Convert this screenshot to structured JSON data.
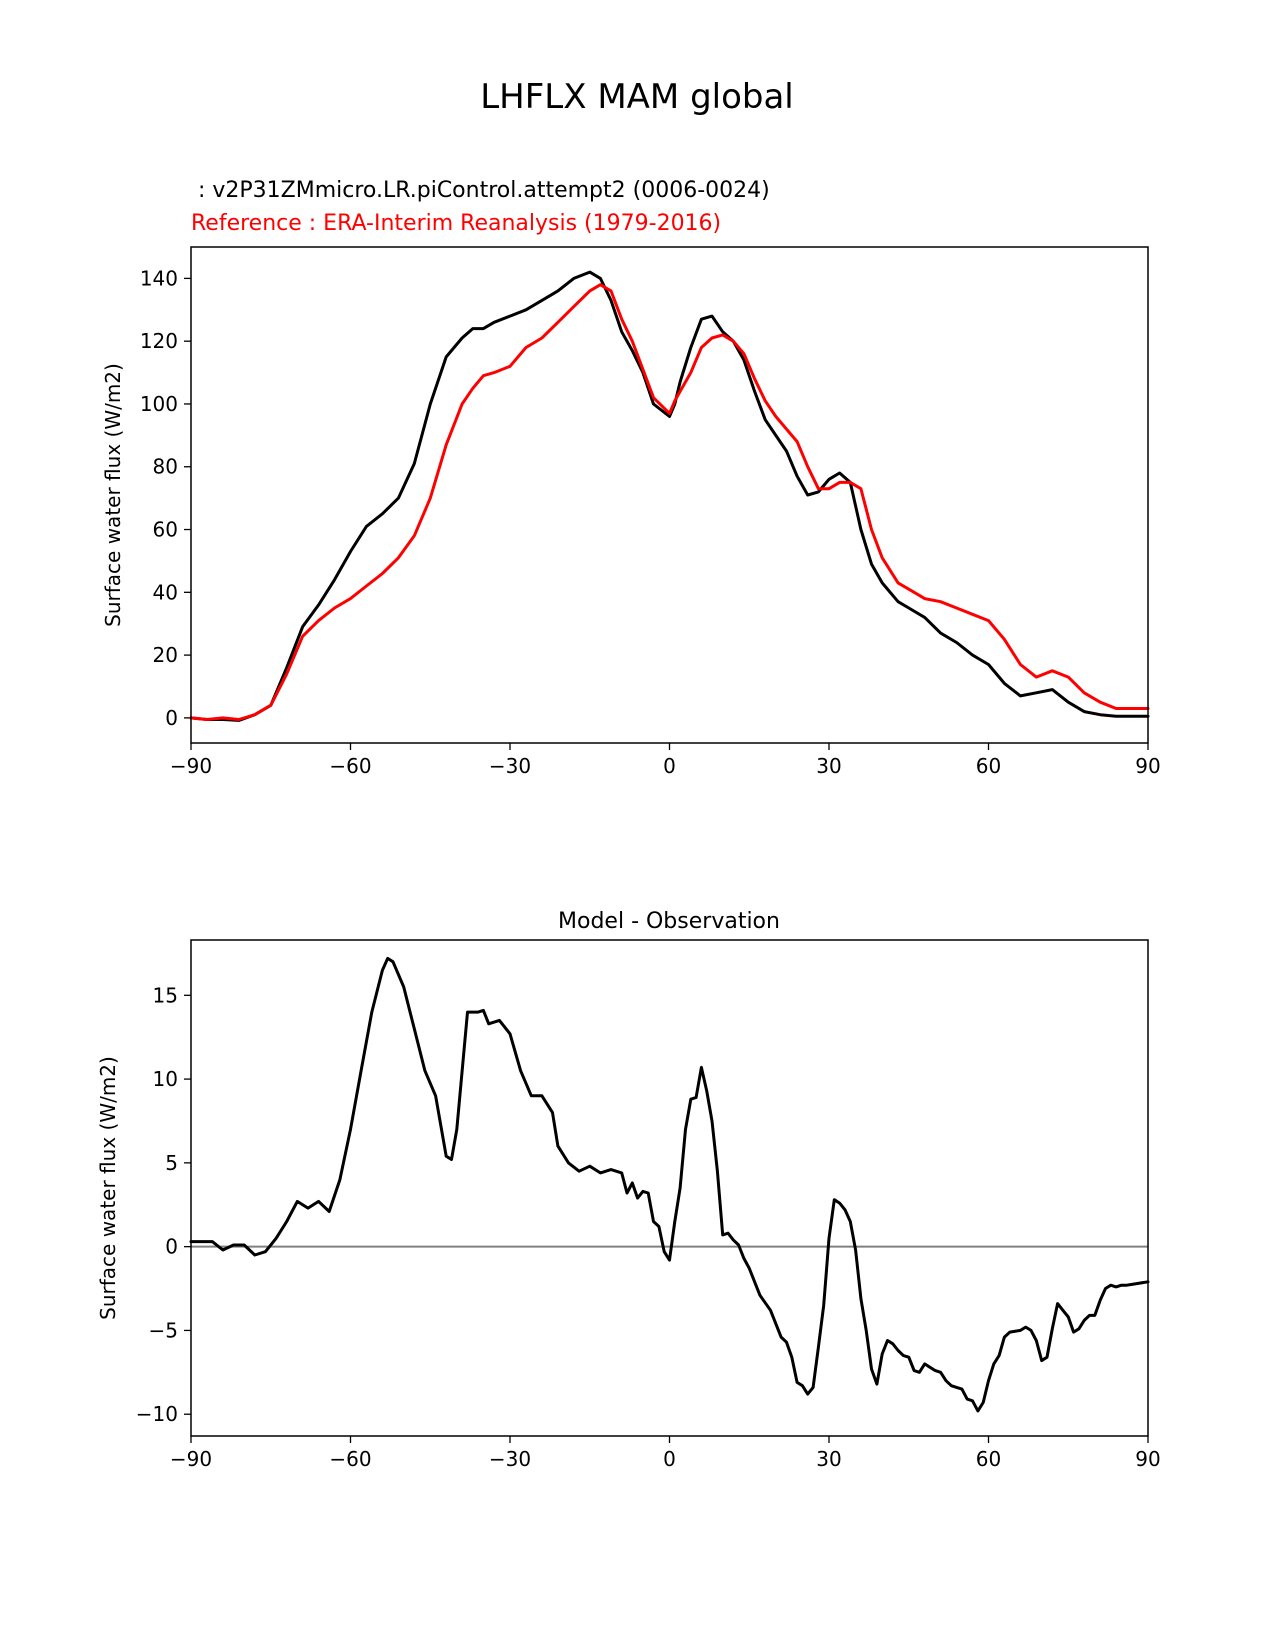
{
  "figure": {
    "title": "LHFLX MAM global"
  },
  "chart_data": [
    {
      "type": "line",
      "title_test": " : v2P31ZMmicro.LR.piControl.attempt2 (0006-0024)",
      "title_ref": "Reference : ERA-Interim Reanalysis (1979-2016)",
      "xlabel": "",
      "ylabel": "Surface water flux (W/m2)",
      "xlim": [
        -90,
        90
      ],
      "ylim": [
        -8,
        150
      ],
      "xticks": [
        -90,
        -60,
        -30,
        0,
        30,
        60,
        90
      ],
      "xtick_labels": [
        "−90",
        "−60",
        "−30",
        "0",
        "30",
        "60",
        "90"
      ],
      "yticks": [
        0,
        20,
        40,
        60,
        80,
        100,
        120,
        140
      ],
      "ytick_labels": [
        "0",
        "20",
        "40",
        "60",
        "80",
        "100",
        "120",
        "140"
      ],
      "series": [
        {
          "name": "v2P31ZMmicro.LR.piControl.attempt2 (0006-0024)",
          "color": "#000000",
          "x": [
            -90,
            -87,
            -84,
            -81,
            -78,
            -75,
            -72,
            -69,
            -66,
            -63,
            -60,
            -57,
            -54,
            -51,
            -48,
            -45,
            -42,
            -39,
            -37,
            -35,
            -33,
            -30,
            -27,
            -24,
            -21,
            -18,
            -15,
            -13,
            -11,
            -9,
            -7,
            -5,
            -3,
            0,
            1,
            2,
            4,
            6,
            8,
            10,
            12,
            14,
            16,
            18,
            20,
            22,
            24,
            26,
            28,
            30,
            32,
            34,
            36,
            38,
            40,
            43,
            45,
            48,
            51,
            54,
            57,
            60,
            63,
            66,
            69,
            72,
            75,
            78,
            81,
            84,
            87,
            90
          ],
          "y": [
            0,
            -0.5,
            -0.5,
            -0.8,
            1,
            4,
            16,
            29,
            36,
            44,
            53,
            61,
            65,
            70,
            81,
            100,
            115,
            121,
            124,
            124,
            126,
            128,
            130,
            133,
            136,
            140,
            142,
            140,
            133,
            123,
            117,
            110,
            100,
            96,
            100,
            107,
            118,
            127,
            128,
            123,
            120,
            114,
            104,
            95,
            90,
            85,
            77,
            71,
            72,
            76,
            78,
            75,
            60,
            49,
            43,
            37,
            35,
            32,
            27,
            24,
            20,
            17,
            11,
            7,
            8,
            9,
            5,
            2,
            1,
            0.5,
            0.5,
            0.5
          ]
        },
        {
          "name": "ERA-Interim Reanalysis (1979-2016)",
          "color": "#ff0000",
          "x": [
            -90,
            -87,
            -84,
            -81,
            -78,
            -75,
            -72,
            -69,
            -66,
            -63,
            -60,
            -57,
            -54,
            -51,
            -48,
            -45,
            -42,
            -39,
            -37,
            -35,
            -33,
            -30,
            -27,
            -24,
            -21,
            -18,
            -15,
            -13,
            -11,
            -9,
            -7,
            -5,
            -3,
            0,
            1,
            2,
            4,
            6,
            8,
            10,
            12,
            14,
            16,
            18,
            20,
            22,
            24,
            26,
            28,
            30,
            32,
            34,
            36,
            38,
            40,
            43,
            45,
            48,
            51,
            54,
            57,
            60,
            63,
            66,
            69,
            72,
            75,
            78,
            81,
            84,
            87,
            90
          ],
          "y": [
            0,
            -0.5,
            0,
            -0.5,
            1,
            4,
            14,
            26,
            31,
            35,
            38,
            42,
            46,
            51,
            58,
            70,
            87,
            100,
            105,
            109,
            110,
            112,
            118,
            121,
            126,
            131,
            136,
            138,
            136,
            127,
            120,
            111,
            102,
            97,
            101,
            104,
            110,
            118,
            121,
            122,
            120,
            116,
            108,
            101,
            96,
            92,
            88,
            80,
            73,
            73,
            75,
            75,
            73,
            60,
            51,
            43,
            41,
            38,
            37,
            35,
            33,
            31,
            25,
            17,
            13,
            15,
            13,
            8,
            5,
            3,
            3,
            3
          ]
        }
      ]
    },
    {
      "type": "line",
      "title": "Model - Observation",
      "xlabel": "",
      "ylabel": "Surface water flux (W/m2)",
      "xlim": [
        -90,
        90
      ],
      "ylim": [
        -11.3,
        18.3
      ],
      "xticks": [
        -90,
        -60,
        -30,
        0,
        30,
        60,
        90
      ],
      "xtick_labels": [
        "−90",
        "−60",
        "−30",
        "0",
        "30",
        "60",
        "90"
      ],
      "yticks": [
        -10,
        -5,
        0,
        5,
        10,
        15
      ],
      "ytick_labels": [
        "−10",
        "−5",
        "0",
        "5",
        "10",
        "15"
      ],
      "zero_line": {
        "y": 0,
        "color": "#808080"
      },
      "series": [
        {
          "name": "Model - Observation",
          "color": "#000000",
          "x": [
            -90,
            -86,
            -84,
            -82,
            -80,
            -78,
            -76,
            -74,
            -72,
            -70,
            -68,
            -66,
            -64,
            -62,
            -60,
            -58,
            -56,
            -54,
            -53,
            -52,
            -50,
            -48,
            -46,
            -44,
            -42,
            -41,
            -40,
            -38,
            -36,
            -35,
            -34,
            -32,
            -30,
            -28,
            -26,
            -24,
            -22,
            -21,
            -19,
            -17,
            -15,
            -13,
            -11,
            -9,
            -8,
            -7,
            -6,
            -5,
            -4,
            -3,
            -2,
            -1,
            0,
            1,
            2,
            3,
            4,
            5,
            6,
            7,
            8,
            9,
            10,
            11,
            12,
            13,
            14,
            15,
            17,
            19,
            21,
            22,
            23,
            24,
            25,
            26,
            27,
            28,
            29,
            30,
            31,
            32,
            33,
            34,
            35,
            36,
            37,
            38,
            39,
            40,
            41,
            42,
            43,
            44,
            45,
            46,
            47,
            48,
            49,
            50,
            51,
            52,
            53,
            54,
            55,
            56,
            57,
            58,
            59,
            60,
            61,
            62,
            63,
            64,
            66,
            67,
            68,
            69,
            70,
            71,
            72,
            73,
            74,
            75,
            76,
            77,
            78,
            79,
            80,
            81,
            82,
            83,
            84,
            85,
            86,
            87,
            88,
            90
          ],
          "y": [
            0.3,
            0.3,
            -0.2,
            0.1,
            0.1,
            -0.5,
            -0.3,
            0.5,
            1.5,
            2.7,
            2.3,
            2.7,
            2.1,
            4,
            7,
            10.5,
            14,
            16.5,
            17.2,
            17,
            15.5,
            13,
            10.5,
            9,
            5.4,
            5.2,
            7,
            14,
            14,
            14.1,
            13.3,
            13.5,
            12.7,
            10.5,
            9,
            9,
            8,
            6,
            5,
            4.5,
            4.8,
            4.4,
            4.6,
            4.4,
            3.2,
            3.8,
            2.9,
            3.3,
            3.2,
            1.5,
            1.2,
            -0.3,
            -0.8,
            1.5,
            3.5,
            7,
            8.8,
            8.9,
            10.7,
            9.3,
            7.5,
            4.5,
            0.7,
            0.8,
            0.4,
            0.1,
            -0.7,
            -1.3,
            -2.9,
            -3.8,
            -5.4,
            -5.7,
            -6.6,
            -8.1,
            -8.3,
            -8.8,
            -8.4,
            -6,
            -3.5,
            0.5,
            2.8,
            2.6,
            2.2,
            1.5,
            -0.2,
            -3.1,
            -5,
            -7.3,
            -8.2,
            -6.4,
            -5.6,
            -5.8,
            -6.2,
            -6.5,
            -6.6,
            -7.4,
            -7.5,
            -7,
            -7.2,
            -7.4,
            -7.5,
            -8,
            -8.3,
            -8.4,
            -8.5,
            -9.1,
            -9.2,
            -9.8,
            -9.3,
            -8,
            -7,
            -6.5,
            -5.4,
            -5.1,
            -5,
            -4.8,
            -5,
            -5.6,
            -6.8,
            -6.6,
            -4.9,
            -3.4,
            -3.8,
            -4.2,
            -5.1,
            -4.9,
            -4.4,
            -4.1,
            -4.1,
            -3.2,
            -2.5,
            -2.3,
            -2.4,
            -2.3,
            -2.3,
            -2.25,
            -2.2,
            -2.1
          ]
        }
      ]
    }
  ]
}
